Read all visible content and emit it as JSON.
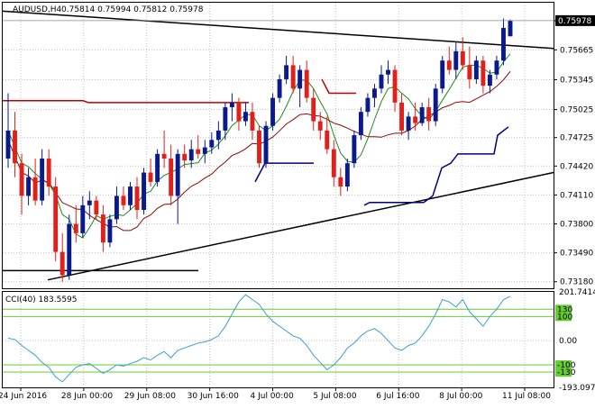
{
  "header": {
    "symbol": "AUDUSD,H4",
    "ohlc": "0.75814 0.75994 0.75812 0.75978"
  },
  "cci_header": {
    "label": "CCI(40) 183.5595"
  },
  "colors": {
    "bull": "#0a1a8c",
    "bear": "#e0201a",
    "ma_green": "#1f8a1f",
    "ma_red": "#8b0a0a",
    "trend": "#000000",
    "pivot_red": "#c00000",
    "pivot_blue": "#00007f",
    "cci_line": "#3aa0c8",
    "cci_level": "#66cc33",
    "grid": "#c0c0c0"
  },
  "chart_data": [
    {
      "type": "line",
      "name": "main",
      "candles": [
        [
          0.745,
          0.752,
          0.744,
          0.748
        ],
        [
          0.748,
          0.75,
          0.743,
          0.7445
        ],
        [
          0.7445,
          0.7455,
          0.739,
          0.741
        ],
        [
          0.741,
          0.744,
          0.74,
          0.743
        ],
        [
          0.743,
          0.745,
          0.74,
          0.7405
        ],
        [
          0.7405,
          0.746,
          0.74,
          0.745
        ],
        [
          0.745,
          0.746,
          0.741,
          0.742
        ],
        [
          0.742,
          0.743,
          0.734,
          0.735
        ],
        [
          0.735,
          0.737,
          0.7318,
          0.7325
        ],
        [
          0.7325,
          0.739,
          0.732,
          0.738
        ],
        [
          0.738,
          0.74,
          0.736,
          0.737
        ],
        [
          0.737,
          0.741,
          0.7365,
          0.74
        ],
        [
          0.74,
          0.7415,
          0.7385,
          0.7405
        ],
        [
          0.7405,
          0.741,
          0.7385,
          0.739
        ],
        [
          0.739,
          0.74,
          0.735,
          0.736
        ],
        [
          0.736,
          0.739,
          0.7355,
          0.7385
        ],
        [
          0.7385,
          0.742,
          0.738,
          0.741
        ],
        [
          0.741,
          0.742,
          0.7395,
          0.74
        ],
        [
          0.74,
          0.7425,
          0.7395,
          0.742
        ],
        [
          0.742,
          0.743,
          0.7385,
          0.7395
        ],
        [
          0.7395,
          0.744,
          0.739,
          0.7435
        ],
        [
          0.7435,
          0.745,
          0.742,
          0.7425
        ],
        [
          0.7425,
          0.746,
          0.742,
          0.7455
        ],
        [
          0.7455,
          0.748,
          0.744,
          0.745
        ],
        [
          0.745,
          0.7465,
          0.74,
          0.741
        ],
        [
          0.741,
          0.746,
          0.738,
          0.7455
        ],
        [
          0.7455,
          0.7465,
          0.744,
          0.7448
        ],
        [
          0.7448,
          0.747,
          0.744,
          0.746
        ],
        [
          0.746,
          0.7475,
          0.745,
          0.7455
        ],
        [
          0.7455,
          0.747,
          0.7445,
          0.7462
        ],
        [
          0.7462,
          0.7478,
          0.7455,
          0.747
        ],
        [
          0.747,
          0.749,
          0.746,
          0.748
        ],
        [
          0.748,
          0.751,
          0.747,
          0.7505
        ],
        [
          0.7505,
          0.752,
          0.749,
          0.751
        ],
        [
          0.751,
          0.7515,
          0.748,
          0.749
        ],
        [
          0.749,
          0.751,
          0.7485,
          0.75
        ],
        [
          0.75,
          0.751,
          0.747,
          0.748
        ],
        [
          0.748,
          0.7485,
          0.744,
          0.7445
        ],
        [
          0.7445,
          0.749,
          0.744,
          0.7485
        ],
        [
          0.7485,
          0.752,
          0.748,
          0.7515
        ],
        [
          0.7515,
          0.754,
          0.751,
          0.7535
        ],
        [
          0.7535,
          0.756,
          0.753,
          0.755
        ],
        [
          0.755,
          0.756,
          0.752,
          0.7525
        ],
        [
          0.7525,
          0.755,
          0.7505,
          0.7545
        ],
        [
          0.7545,
          0.7555,
          0.751,
          0.7515
        ],
        [
          0.7515,
          0.7525,
          0.748,
          0.749
        ],
        [
          0.749,
          0.75,
          0.747,
          0.748
        ],
        [
          0.748,
          0.7495,
          0.7455,
          0.746
        ],
        [
          0.746,
          0.747,
          0.742,
          0.743
        ],
        [
          0.743,
          0.744,
          0.741,
          0.742
        ],
        [
          0.742,
          0.745,
          0.7415,
          0.7445
        ],
        [
          0.7445,
          0.748,
          0.744,
          0.7475
        ],
        [
          0.7475,
          0.7505,
          0.747,
          0.75
        ],
        [
          0.75,
          0.752,
          0.7495,
          0.7515
        ],
        [
          0.7515,
          0.753,
          0.7505,
          0.7525
        ],
        [
          0.7525,
          0.755,
          0.752,
          0.754
        ],
        [
          0.754,
          0.7555,
          0.753,
          0.7545
        ],
        [
          0.7545,
          0.755,
          0.75,
          0.751
        ],
        [
          0.751,
          0.752,
          0.7475,
          0.748
        ],
        [
          0.748,
          0.75,
          0.747,
          0.7495
        ],
        [
          0.7495,
          0.751,
          0.748,
          0.7488
        ],
        [
          0.7488,
          0.751,
          0.7485,
          0.7505
        ],
        [
          0.7505,
          0.7515,
          0.748,
          0.749
        ],
        [
          0.749,
          0.753,
          0.7485,
          0.7525
        ],
        [
          0.7525,
          0.756,
          0.752,
          0.7555
        ],
        [
          0.7555,
          0.757,
          0.754,
          0.7545
        ],
        [
          0.7545,
          0.7575,
          0.7535,
          0.7565
        ],
        [
          0.7565,
          0.758,
          0.7545,
          0.755
        ],
        [
          0.755,
          0.757,
          0.7525,
          0.7535
        ],
        [
          0.7535,
          0.756,
          0.753,
          0.7555
        ],
        [
          0.7555,
          0.756,
          0.752,
          0.7528
        ],
        [
          0.7528,
          0.7545,
          0.752,
          0.754
        ],
        [
          0.754,
          0.756,
          0.7535,
          0.7555
        ],
        [
          0.7555,
          0.76,
          0.755,
          0.759
        ],
        [
          0.7581,
          0.7599,
          0.7581,
          0.7598
        ]
      ],
      "ylim": [
        0.7311,
        0.7617
      ],
      "y_ticks": [
        "0.75978",
        "0.75665",
        "0.75345",
        "0.75025",
        "0.74725",
        "0.74420",
        "0.74110",
        "0.73800",
        "0.73490",
        "0.73180"
      ],
      "x_ticks": [
        "24 Jun 2016",
        "28 Jun 00:00",
        "29 Jun 08:00",
        "30 Jun 16:00",
        "4 Jul 00:00",
        "5 Jul 08:00",
        "6 Jul 16:00",
        "8 Jul 00:00",
        "11 Jul 08:00"
      ],
      "last_price": "0.75978",
      "grid": true
    },
    {
      "type": "line",
      "name": "cci",
      "values": [
        10,
        5,
        -20,
        -40,
        -60,
        -90,
        -110,
        -150,
        -170,
        -140,
        -110,
        -100,
        -95,
        -115,
        -135,
        -120,
        -100,
        -105,
        -95,
        -85,
        -70,
        -80,
        -60,
        -45,
        -70,
        -40,
        -30,
        -20,
        -10,
        -5,
        5,
        20,
        60,
        110,
        160,
        190,
        170,
        150,
        110,
        80,
        60,
        40,
        20,
        10,
        -20,
        -60,
        -90,
        -120,
        -100,
        -70,
        -30,
        -10,
        20,
        40,
        50,
        30,
        0,
        -30,
        -40,
        -20,
        -10,
        20,
        60,
        110,
        170,
        160,
        140,
        170,
        120,
        90,
        60,
        100,
        130,
        170,
        183.56
      ],
      "ylim": [
        -193.0971,
        201.7414
      ],
      "y_ticks": [
        "201.7414",
        "130",
        "100",
        "0.00",
        "-100",
        "-130",
        "-193.0971"
      ],
      "levels": [
        130,
        100,
        -100,
        -130
      ]
    }
  ]
}
